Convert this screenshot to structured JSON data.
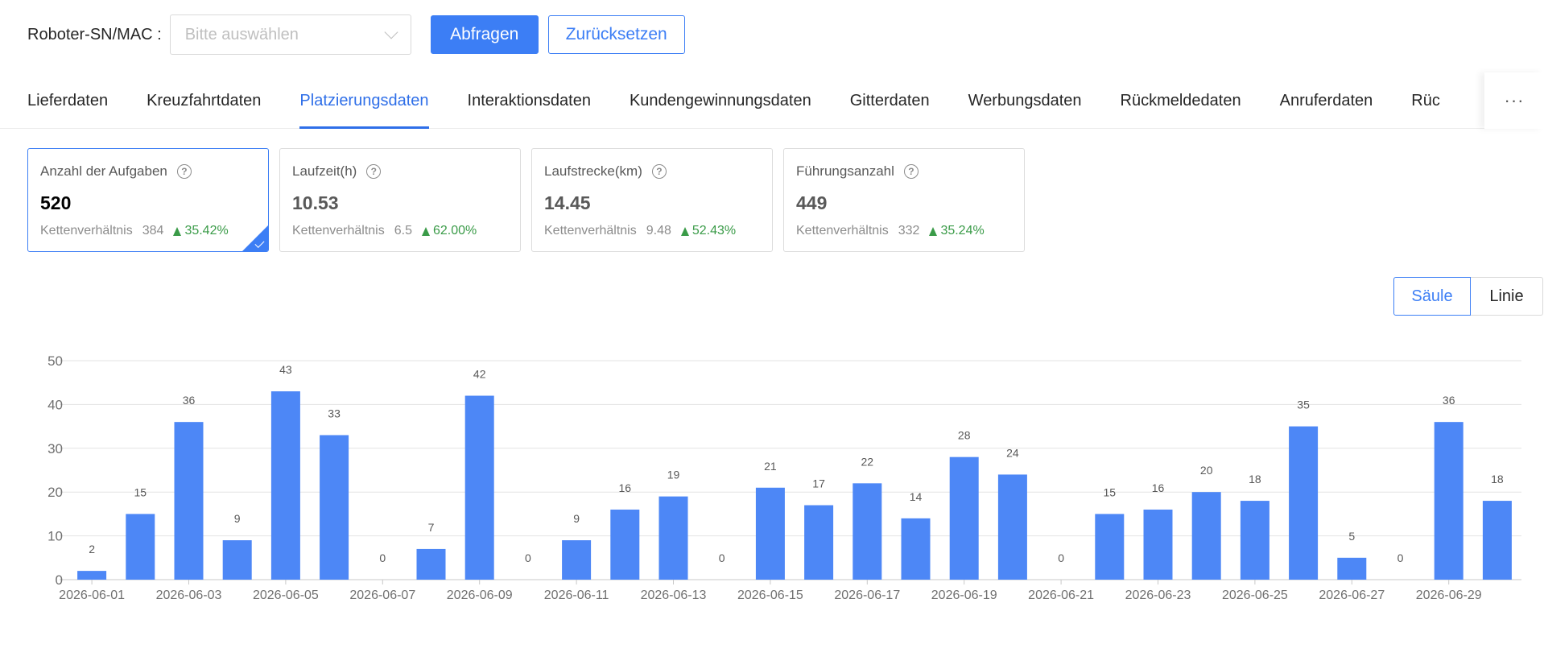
{
  "filter": {
    "label": "Roboter-SN/MAC :",
    "placeholder": "Bitte auswählen",
    "query_label": "Abfragen",
    "reset_label": "Zurücksetzen"
  },
  "tabs": [
    {
      "label": "Lieferdaten",
      "active": false
    },
    {
      "label": "Kreuzfahrtdaten",
      "active": false
    },
    {
      "label": "Platzierungsdaten",
      "active": true
    },
    {
      "label": "Interaktionsdaten",
      "active": false
    },
    {
      "label": "Kundengewinnungsdaten",
      "active": false
    },
    {
      "label": "Gitterdaten",
      "active": false
    },
    {
      "label": "Werbungsdaten",
      "active": false
    },
    {
      "label": "Rückmeldedaten",
      "active": false
    },
    {
      "label": "Anruferdaten",
      "active": false
    },
    {
      "label": "Rüc",
      "active": false
    }
  ],
  "tab_more": "···",
  "cards": [
    {
      "title": "Anzahl der Aufgaben",
      "value": "520",
      "ratio_label": "Kettenverhältnis",
      "prev": "384",
      "change": "35.42%",
      "active": true
    },
    {
      "title": "Laufzeit(h)",
      "value": "10.53",
      "ratio_label": "Kettenverhältnis",
      "prev": "6.5",
      "change": "62.00%",
      "active": false
    },
    {
      "title": "Laufstrecke(km)",
      "value": "14.45",
      "ratio_label": "Kettenverhältnis",
      "prev": "9.48",
      "change": "52.43%",
      "active": false
    },
    {
      "title": "Führungsanzahl",
      "value": "449",
      "ratio_label": "Kettenverhältnis",
      "prev": "332",
      "change": "35.24%",
      "active": false
    }
  ],
  "toggle": {
    "column": "Säule",
    "line": "Linie",
    "selected": "column"
  },
  "colors": {
    "accent": "#3c7ef5",
    "bar": "#4d87f6",
    "positive": "#3a9b48"
  },
  "chart_data": {
    "type": "bar",
    "categories": [
      "2026-06-01",
      "2026-06-02",
      "2026-06-03",
      "2026-06-04",
      "2026-06-05",
      "2026-06-06",
      "2026-06-07",
      "2026-06-08",
      "2026-06-09",
      "2026-06-10",
      "2026-06-11",
      "2026-06-12",
      "2026-06-13",
      "2026-06-14",
      "2026-06-15",
      "2026-06-16",
      "2026-06-17",
      "2026-06-18",
      "2026-06-19",
      "2026-06-20",
      "2026-06-21",
      "2026-06-22",
      "2026-06-23",
      "2026-06-24",
      "2026-06-25",
      "2026-06-26",
      "2026-06-27",
      "2026-06-28",
      "2026-06-29",
      "2026-06-30"
    ],
    "values": [
      2,
      15,
      36,
      9,
      43,
      33,
      0,
      7,
      42,
      0,
      9,
      16,
      19,
      0,
      21,
      17,
      22,
      14,
      28,
      24,
      0,
      15,
      16,
      20,
      18,
      35,
      5,
      0,
      36,
      18
    ],
    "x_tick_labels": [
      "2026-06-01",
      "2026-06-03",
      "2026-06-05",
      "2026-06-07",
      "2026-06-09",
      "2026-06-11",
      "2026-06-13",
      "2026-06-15",
      "2026-06-17",
      "2026-06-19",
      "2026-06-21",
      "2026-06-23",
      "2026-06-25",
      "2026-06-27",
      "2026-06-29"
    ],
    "y_ticks": [
      0,
      10,
      20,
      30,
      40,
      50
    ],
    "ylim": [
      0,
      50
    ],
    "grid": true,
    "data_labels": true
  }
}
